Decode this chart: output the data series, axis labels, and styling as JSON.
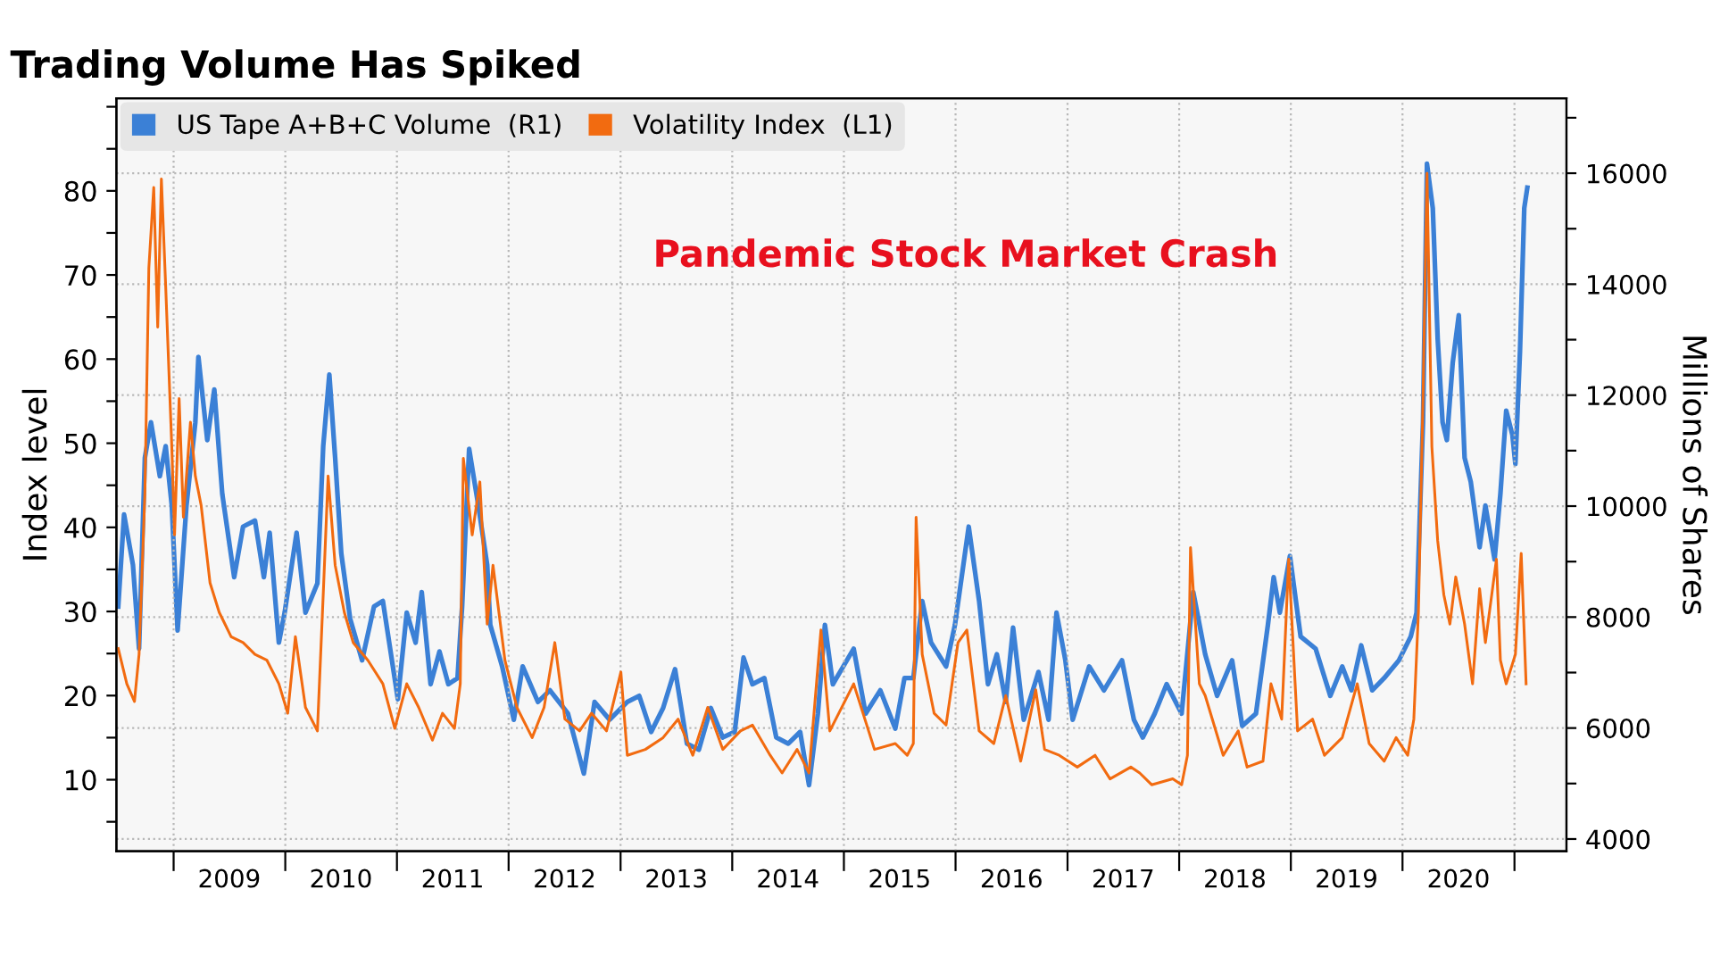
{
  "chart_data": {
    "type": "line",
    "title": "Trading Volume Has Spiked",
    "ylabel": "Index level",
    "y2label": "Millions of Shares",
    "annotations": [
      "Pandemic Stock Market Crash"
    ],
    "legend": "top left",
    "grid": true,
    "marker": "none",
    "line_style": "solid",
    "xlim": [
      "2008-06-28",
      "2021-06-20"
    ],
    "xticks": [
      {
        "value": "2009-01-01",
        "label": null
      },
      {
        "value": "2009-07-02",
        "label": "2009"
      },
      {
        "value": "2010-01-01",
        "label": null
      },
      {
        "value": "2010-07-02",
        "label": "2010"
      },
      {
        "value": "2011-01-01",
        "label": null
      },
      {
        "value": "2011-07-02",
        "label": "2011"
      },
      {
        "value": "2012-01-01",
        "label": null
      },
      {
        "value": "2012-07-02",
        "label": "2012"
      },
      {
        "value": "2013-01-01",
        "label": null
      },
      {
        "value": "2013-07-02",
        "label": "2013"
      },
      {
        "value": "2014-01-01",
        "label": null
      },
      {
        "value": "2014-07-02",
        "label": "2014"
      },
      {
        "value": "2015-01-01",
        "label": null
      },
      {
        "value": "2015-07-02",
        "label": "2015"
      },
      {
        "value": "2016-01-01",
        "label": null
      },
      {
        "value": "2016-07-02",
        "label": "2016"
      },
      {
        "value": "2017-01-01",
        "label": null
      },
      {
        "value": "2017-07-02",
        "label": "2017"
      },
      {
        "value": "2018-01-01",
        "label": null
      },
      {
        "value": "2018-07-02",
        "label": "2018"
      },
      {
        "value": "2019-01-01",
        "label": null
      },
      {
        "value": "2019-07-02",
        "label": "2019"
      },
      {
        "value": "2020-01-01",
        "label": null
      },
      {
        "value": "2020-07-02",
        "label": "2020"
      },
      {
        "value": "2021-01-01",
        "label": null
      }
    ],
    "ylim": [
      1.5,
      91
    ],
    "yticks": [
      {
        "value": 5,
        "label": null
      },
      10,
      {
        "value": 15,
        "label": null
      },
      20,
      {
        "value": 25,
        "label": null
      },
      30,
      {
        "value": 35,
        "label": null
      },
      40,
      {
        "value": 45,
        "label": null
      },
      50,
      {
        "value": 55,
        "label": null
      },
      60,
      {
        "value": 65,
        "label": null
      },
      70,
      {
        "value": 75,
        "label": null
      },
      80,
      {
        "value": 85,
        "label": null
      },
      {
        "value": 90,
        "label": null
      }
    ],
    "y2lim": [
      3780,
      17350
    ],
    "y2ticks": [
      4000,
      {
        "value": 5000,
        "label": null
      },
      6000,
      {
        "value": 7000,
        "label": null
      },
      8000,
      {
        "value": 9000,
        "label": null
      },
      10000,
      {
        "value": 11000,
        "label": null
      },
      12000,
      {
        "value": 13000,
        "label": null
      },
      14000,
      {
        "value": 15000,
        "label": null
      },
      16000,
      {
        "value": 17000,
        "label": null
      }
    ],
    "series": [
      {
        "name": "US Tape A+B+C Volume  (R1)",
        "color": "#3b80d6",
        "axis": "y2",
        "x": [
          "2008-07-04",
          "2008-07-23",
          "2008-08-21",
          "2008-09-10",
          "2008-09-29",
          "2008-10-19",
          "2008-11-17",
          "2008-12-06",
          "2008-12-26",
          "2009-01-14",
          "2009-02-12",
          "2009-03-13",
          "2009-03-23",
          "2009-04-21",
          "2009-05-14",
          "2009-06-09",
          "2009-07-18",
          "2009-08-16",
          "2009-09-24",
          "2009-10-23",
          "2009-11-11",
          "2009-12-11",
          "2009-12-30",
          "2010-02-07",
          "2010-03-08",
          "2010-04-16",
          "2010-05-05",
          "2010-05-25",
          "2010-06-13",
          "2010-07-03",
          "2010-08-01",
          "2010-09-09",
          "2010-10-18",
          "2010-11-16",
          "2011-01-04",
          "2011-02-02",
          "2011-03-03",
          "2011-03-23",
          "2011-04-21",
          "2011-05-20",
          "2011-06-18",
          "2011-07-18",
          "2011-08-02",
          "2011-08-25",
          "2011-09-24",
          "2011-10-23",
          "2011-11-02",
          "2011-12-11",
          "2012-01-18",
          "2012-02-16",
          "2012-04-06",
          "2012-05-15",
          "2012-07-13",
          "2012-09-03",
          "2012-10-08",
          "2012-11-26",
          "2013-01-23",
          "2013-03-03",
          "2013-04-11",
          "2013-05-20",
          "2013-06-28",
          "2013-08-06",
          "2013-09-14",
          "2013-10-23",
          "2013-12-01",
          "2014-01-09",
          "2014-02-07",
          "2014-03-08",
          "2014-04-16",
          "2014-05-25",
          "2014-07-03",
          "2014-08-11",
          "2014-09-09",
          "2014-10-08",
          "2014-10-31",
          "2014-11-26",
          "2015-02-02",
          "2015-03-13",
          "2015-04-30",
          "2015-06-18",
          "2015-07-18",
          "2015-08-16",
          "2015-09-14",
          "2015-10-13",
          "2015-12-01",
          "2015-12-30",
          "2016-02-13",
          "2016-03-18",
          "2016-04-16",
          "2016-05-15",
          "2016-06-13",
          "2016-07-07",
          "2016-08-11",
          "2016-09-28",
          "2016-10-31",
          "2016-11-26",
          "2016-12-25",
          "2017-01-18",
          "2017-03-13",
          "2017-04-30",
          "2017-06-28",
          "2017-08-06",
          "2017-09-04",
          "2017-10-13",
          "2017-11-21",
          "2018-01-09",
          "2018-02-16",
          "2018-03-27",
          "2018-05-05",
          "2018-06-23",
          "2018-07-26",
          "2018-09-09",
          "2018-10-18",
          "2018-11-06",
          "2018-11-26",
          "2018-12-29",
          "2019-02-02",
          "2019-03-23",
          "2019-05-10",
          "2019-06-18",
          "2019-07-18",
          "2019-08-19",
          "2019-09-24",
          "2019-11-02",
          "2019-12-20",
          "2020-01-28",
          "2020-02-16",
          "2020-03-08",
          "2020-03-21",
          "2020-04-09",
          "2020-04-25",
          "2020-05-11",
          "2020-05-25",
          "2020-06-13",
          "2020-07-03",
          "2020-07-22",
          "2020-08-11",
          "2020-09-09",
          "2020-09-28",
          "2020-10-28",
          "2020-11-16",
          "2020-12-05",
          "2020-12-25",
          "2021-01-04",
          "2021-01-19",
          "2021-02-02",
          "2021-02-12"
        ],
        "values": [
          8190,
          9850,
          8940,
          7430,
          10870,
          11510,
          10540,
          11080,
          10010,
          7760,
          10010,
          11510,
          12690,
          11190,
          12100,
          10220,
          8720,
          9630,
          9740,
          8720,
          9520,
          7540,
          8080,
          9520,
          8080,
          8610,
          11080,
          12370,
          10870,
          9150,
          7970,
          7220,
          8190,
          8290,
          6520,
          8080,
          7540,
          8450,
          6790,
          7380,
          6790,
          6900,
          8190,
          11030,
          10010,
          8940,
          7860,
          7110,
          6150,
          7110,
          6470,
          6680,
          6260,
          5180,
          6470,
          6150,
          6470,
          6580,
          5930,
          6360,
          7060,
          5720,
          5610,
          6360,
          5830,
          5930,
          7270,
          6790,
          6900,
          5830,
          5720,
          5930,
          4970,
          6260,
          7860,
          6790,
          7430,
          6260,
          6680,
          5990,
          6900,
          6900,
          8290,
          7540,
          7110,
          7860,
          9630,
          8290,
          6790,
          7330,
          6470,
          7810,
          6150,
          7010,
          6150,
          8080,
          7220,
          6150,
          7110,
          6680,
          7220,
          6150,
          5830,
          6260,
          6790,
          6260,
          8450,
          7330,
          6580,
          7220,
          6040,
          6260,
          7860,
          8720,
          8080,
          9100,
          7650,
          7430,
          6580,
          7110,
          6680,
          7490,
          6680,
          6900,
          7220,
          7650,
          8080,
          11510,
          16170,
          15370,
          13010,
          11510,
          11190,
          12580,
          13440,
          10870,
          10440,
          9260,
          10010,
          9040,
          10220,
          11720,
          11290,
          10760,
          12790,
          15370,
          15740
        ]
      },
      {
        "name": "Volatility Index  (L1)",
        "color": "#f26b10",
        "axis": "y",
        "x": [
          "2008-07-04",
          "2008-08-01",
          "2008-08-26",
          "2008-09-10",
          "2008-09-29",
          "2008-10-12",
          "2008-10-28",
          "2008-11-10",
          "2008-11-22",
          "2008-12-06",
          "2008-12-26",
          "2009-01-04",
          "2009-01-19",
          "2009-02-02",
          "2009-02-25",
          "2009-03-13",
          "2009-04-01",
          "2009-04-30",
          "2009-05-30",
          "2009-07-08",
          "2009-08-16",
          "2009-09-24",
          "2009-11-02",
          "2009-12-11",
          "2010-01-09",
          "2010-02-03",
          "2010-03-08",
          "2010-04-16",
          "2010-05-05",
          "2010-05-21",
          "2010-06-13",
          "2010-07-13",
          "2010-08-11",
          "2010-09-28",
          "2010-11-16",
          "2010-12-25",
          "2011-02-02",
          "2011-03-13",
          "2011-04-27",
          "2011-05-30",
          "2011-07-08",
          "2011-07-27",
          "2011-08-06",
          "2011-09-04",
          "2011-09-29",
          "2011-10-23",
          "2011-11-11",
          "2011-12-20",
          "2012-01-28",
          "2012-03-18",
          "2012-04-26",
          "2012-05-31",
          "2012-07-03",
          "2012-08-20",
          "2012-09-28",
          "2012-11-16",
          "2013-01-02",
          "2013-01-23",
          "2013-03-23",
          "2013-05-20",
          "2013-07-08",
          "2013-08-25",
          "2013-10-13",
          "2013-12-01",
          "2014-01-28",
          "2014-03-08",
          "2014-05-05",
          "2014-06-13",
          "2014-08-01",
          "2014-09-09",
          "2014-10-18",
          "2014-11-16",
          "2015-02-02",
          "2015-04-11",
          "2015-06-18",
          "2015-07-27",
          "2015-08-16",
          "2015-08-25",
          "2015-09-14",
          "2015-10-23",
          "2015-12-01",
          "2016-01-09",
          "2016-02-07",
          "2016-03-18",
          "2016-05-05",
          "2016-06-13",
          "2016-08-01",
          "2016-09-19",
          "2016-10-18",
          "2016-12-05",
          "2017-02-02",
          "2017-04-01",
          "2017-05-20",
          "2017-07-27",
          "2017-08-25",
          "2017-10-03",
          "2017-12-11",
          "2018-01-09",
          "2018-01-28",
          "2018-02-07",
          "2018-03-08",
          "2018-03-27",
          "2018-05-25",
          "2018-07-13",
          "2018-08-11",
          "2018-10-02",
          "2018-10-28",
          "2018-12-02",
          "2018-12-25",
          "2019-01-23",
          "2019-03-13",
          "2019-04-21",
          "2019-06-18",
          "2019-08-06",
          "2019-09-14",
          "2019-11-02",
          "2019-12-11",
          "2020-01-18",
          "2020-02-07",
          "2020-02-22",
          "2020-03-08",
          "2020-03-21",
          "2020-04-06",
          "2020-04-25",
          "2020-05-15",
          "2020-06-04",
          "2020-06-23",
          "2020-07-22",
          "2020-08-17",
          "2020-09-09",
          "2020-09-28",
          "2020-11-03",
          "2020-11-16",
          "2020-12-05",
          "2021-01-04",
          "2021-01-23",
          "2021-02-08"
        ],
        "values": [
          25.6,
          21.4,
          19.3,
          24.9,
          44.0,
          70.8,
          80.4,
          63.8,
          81.4,
          68.7,
          49.6,
          39.1,
          55.3,
          41.2,
          52.5,
          46.1,
          42.6,
          33.4,
          29.9,
          27.0,
          26.3,
          24.9,
          24.2,
          21.4,
          17.9,
          27.0,
          18.6,
          15.8,
          32.0,
          46.1,
          35.5,
          29.9,
          26.3,
          24.2,
          21.4,
          16.1,
          21.4,
          18.6,
          14.7,
          17.9,
          16.1,
          21.4,
          48.2,
          39.1,
          45.4,
          28.5,
          35.5,
          24.2,
          18.6,
          15.0,
          18.6,
          26.3,
          17.2,
          15.8,
          17.9,
          15.8,
          22.8,
          12.9,
          13.6,
          15.0,
          17.2,
          12.9,
          18.6,
          13.6,
          15.8,
          16.5,
          12.9,
          10.8,
          13.6,
          10.8,
          27.8,
          15.8,
          21.4,
          13.6,
          14.3,
          12.9,
          14.3,
          41.2,
          24.9,
          17.9,
          16.5,
          26.3,
          27.8,
          15.8,
          14.3,
          20.0,
          12.2,
          20.7,
          13.6,
          12.9,
          11.5,
          12.9,
          10.1,
          11.5,
          10.8,
          9.4,
          10.1,
          9.4,
          12.9,
          37.6,
          21.4,
          20.0,
          12.9,
          15.8,
          11.5,
          12.2,
          21.4,
          17.2,
          36.2,
          15.8,
          17.2,
          12.9,
          15.0,
          21.4,
          14.3,
          12.2,
          15.0,
          12.9,
          17.2,
          29.9,
          55.3,
          82.1,
          49.6,
          38.4,
          32.0,
          28.5,
          34.1,
          28.5,
          21.4,
          32.7,
          26.3,
          36.2,
          24.2,
          21.4,
          24.9,
          36.9,
          21.4
        ]
      }
    ]
  }
}
